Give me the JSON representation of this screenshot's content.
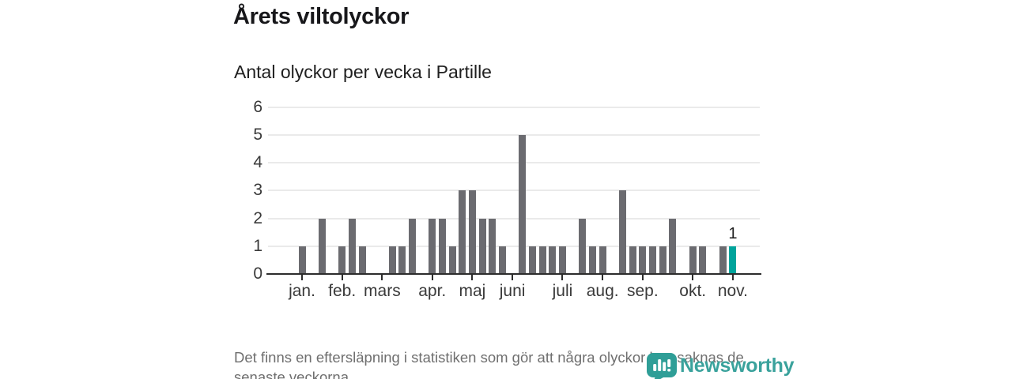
{
  "header": {
    "title": "Årets viltolyckor",
    "subtitle": "Antal olyckor per vecka i Partille"
  },
  "chart_data": {
    "type": "bar",
    "title": "Årets viltolyckor",
    "subtitle": "Antal olyckor per vecka i Partille",
    "x_unit": "vecka",
    "weeks": [
      1,
      2,
      3,
      4,
      5,
      6,
      7,
      8,
      9,
      10,
      11,
      12,
      13,
      14,
      15,
      16,
      17,
      18,
      19,
      20,
      21,
      22,
      23,
      24,
      25,
      26,
      27,
      28,
      29,
      30,
      31,
      32,
      33,
      34,
      35,
      36,
      37,
      38,
      39,
      40,
      41,
      42,
      43,
      44
    ],
    "values": [
      1,
      0,
      2,
      0,
      1,
      2,
      1,
      0,
      0,
      1,
      1,
      2,
      0,
      2,
      2,
      1,
      3,
      3,
      2,
      2,
      1,
      0,
      5,
      1,
      1,
      1,
      1,
      0,
      2,
      1,
      1,
      0,
      3,
      1,
      1,
      1,
      1,
      2,
      0,
      1,
      1,
      0,
      1,
      1
    ],
    "highlight": {
      "week": 44,
      "value": 1,
      "label": "1"
    },
    "ylim": [
      0,
      6
    ],
    "y_ticks": [
      0,
      1,
      2,
      3,
      4,
      5,
      6
    ],
    "x_ticks": [
      {
        "label": "jan.",
        "week": 1
      },
      {
        "label": "feb.",
        "week": 5
      },
      {
        "label": "mars",
        "week": 9
      },
      {
        "label": "apr.",
        "week": 14
      },
      {
        "label": "maj",
        "week": 18
      },
      {
        "label": "juni",
        "week": 22
      },
      {
        "label": "juli",
        "week": 27
      },
      {
        "label": "aug.",
        "week": 31
      },
      {
        "label": "sep.",
        "week": 35
      },
      {
        "label": "okt.",
        "week": 40
      },
      {
        "label": "nov.",
        "week": 44
      }
    ],
    "grid": true,
    "legend": null,
    "bar_color": "#6b6b70",
    "highlight_color": "#00a49c"
  },
  "footer": {
    "lines": [
      "Det finns en eftersläpning i statistiken som gör att några olyckor kan saknas de",
      "senaste veckorna."
    ],
    "logo_text": "Newsworthy"
  },
  "colors": {
    "bar": "#6b6b70",
    "highlight": "#00a49c",
    "logo": "#3aa29c",
    "axis_line": "#2c2c2c",
    "grid_line": "#eaeaea",
    "axis_text": "#3a3a3a",
    "title_text": "#17171a",
    "muted_text": "#6f6f6f",
    "background": "#ffffff"
  }
}
